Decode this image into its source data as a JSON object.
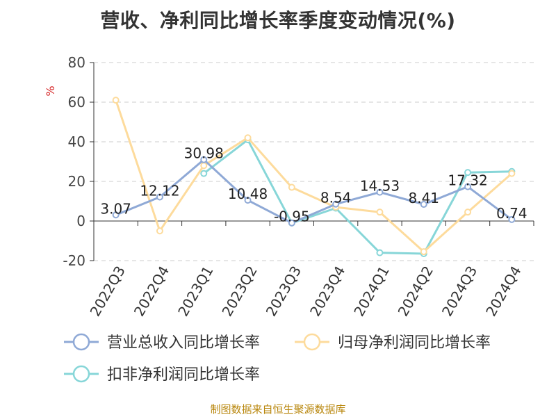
{
  "title": "营收、净利同比增长率季度变动情况(%)",
  "footer": "制图数据来自恒生聚源数据库",
  "chart_data": {
    "type": "line",
    "title": "营收、净利同比增长率季度变动情况(%)",
    "ylabel": "%",
    "ylim": [
      -20,
      80
    ],
    "yticks": [
      -20,
      0,
      20,
      40,
      60,
      80
    ],
    "grid": true,
    "legend_position": "bottom",
    "categories": [
      "2022Q3",
      "2022Q4",
      "2023Q1",
      "2023Q2",
      "2023Q3",
      "2023Q4",
      "2024Q1",
      "2024Q2",
      "2024Q3",
      "2024Q4"
    ],
    "series": [
      {
        "name": "营业总收入同比增长率",
        "color": "#8fa9d6",
        "values": [
          3.07,
          12.12,
          30.98,
          10.48,
          -0.95,
          8.54,
          14.53,
          8.41,
          17.32,
          0.74
        ],
        "labels": [
          "3.07",
          "12.12",
          "30.98",
          "10.48",
          "-0.95",
          "8.54",
          "14.53",
          "8.41",
          "17.32",
          "0.74"
        ]
      },
      {
        "name": "归母净利润同比增长率",
        "color": "#fddb9c",
        "values": [
          61,
          -5,
          28,
          42,
          17,
          7,
          4.5,
          -15.5,
          4.5,
          24
        ]
      },
      {
        "name": "扣非净利润同比增长率",
        "color": "#87d6d8",
        "values": [
          null,
          null,
          24,
          41,
          -1,
          6.5,
          -16,
          -16.5,
          24.5,
          25
        ]
      }
    ]
  }
}
